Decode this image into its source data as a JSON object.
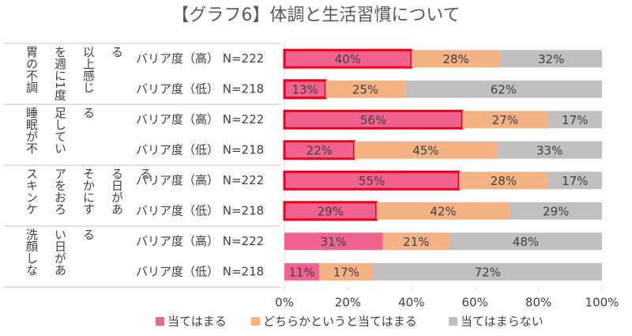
{
  "chart_data": {
    "type": "stacked-bar-horizontal",
    "title": "【グラフ6】体調と生活習慣について",
    "groups": [
      "胃の不調を週に1度以上感じる",
      "睡眠が不足している",
      "スキンケアをおろそかにする日がある",
      "洗顔しない日がある"
    ],
    "categories": [
      "バリア度（高） N=222",
      "バリア度（低） N=218",
      "バリア度（高） N=222",
      "バリア度（低） N=218",
      "バリア度（高） N=222",
      "バリア度（低） N=218",
      "バリア度（高） N=222",
      "バリア度（低） N=218"
    ],
    "series": [
      {
        "name": "当てはまる",
        "color": "#f0638f",
        "values": [
          40,
          13,
          56,
          22,
          55,
          29,
          31,
          11
        ],
        "value_labels": [
          "40%",
          "13%",
          "56%",
          "22%",
          "55%",
          "29%",
          "31%",
          "11%"
        ]
      },
      {
        "name": "どちらかというと当てはまる",
        "color": "#f4b183",
        "values": [
          28,
          25,
          27,
          45,
          28,
          42,
          21,
          17
        ],
        "value_labels": [
          "28%",
          "25%",
          "27%",
          "45%",
          "28%",
          "42%",
          "21%",
          "17%"
        ]
      },
      {
        "name": "当てはまらない",
        "color": "#bfbfbf",
        "values": [
          32,
          62,
          17,
          33,
          17,
          29,
          48,
          72
        ],
        "value_labels": [
          "32%",
          "62%",
          "17%",
          "33%",
          "17%",
          "29%",
          "48%",
          "72%"
        ]
      }
    ],
    "highlight": [
      true,
      true,
      true,
      true,
      true,
      true,
      false,
      false
    ],
    "highlight_color": "#e8001c",
    "xlim": [
      0,
      100
    ],
    "xticks": [
      {
        "value": 0,
        "label": "0%"
      },
      {
        "value": 20,
        "label": "20%"
      },
      {
        "value": 40,
        "label": "40%"
      },
      {
        "value": 60,
        "label": "60%"
      },
      {
        "value": 80,
        "label": "80%"
      },
      {
        "value": 100,
        "label": "100%"
      }
    ]
  }
}
